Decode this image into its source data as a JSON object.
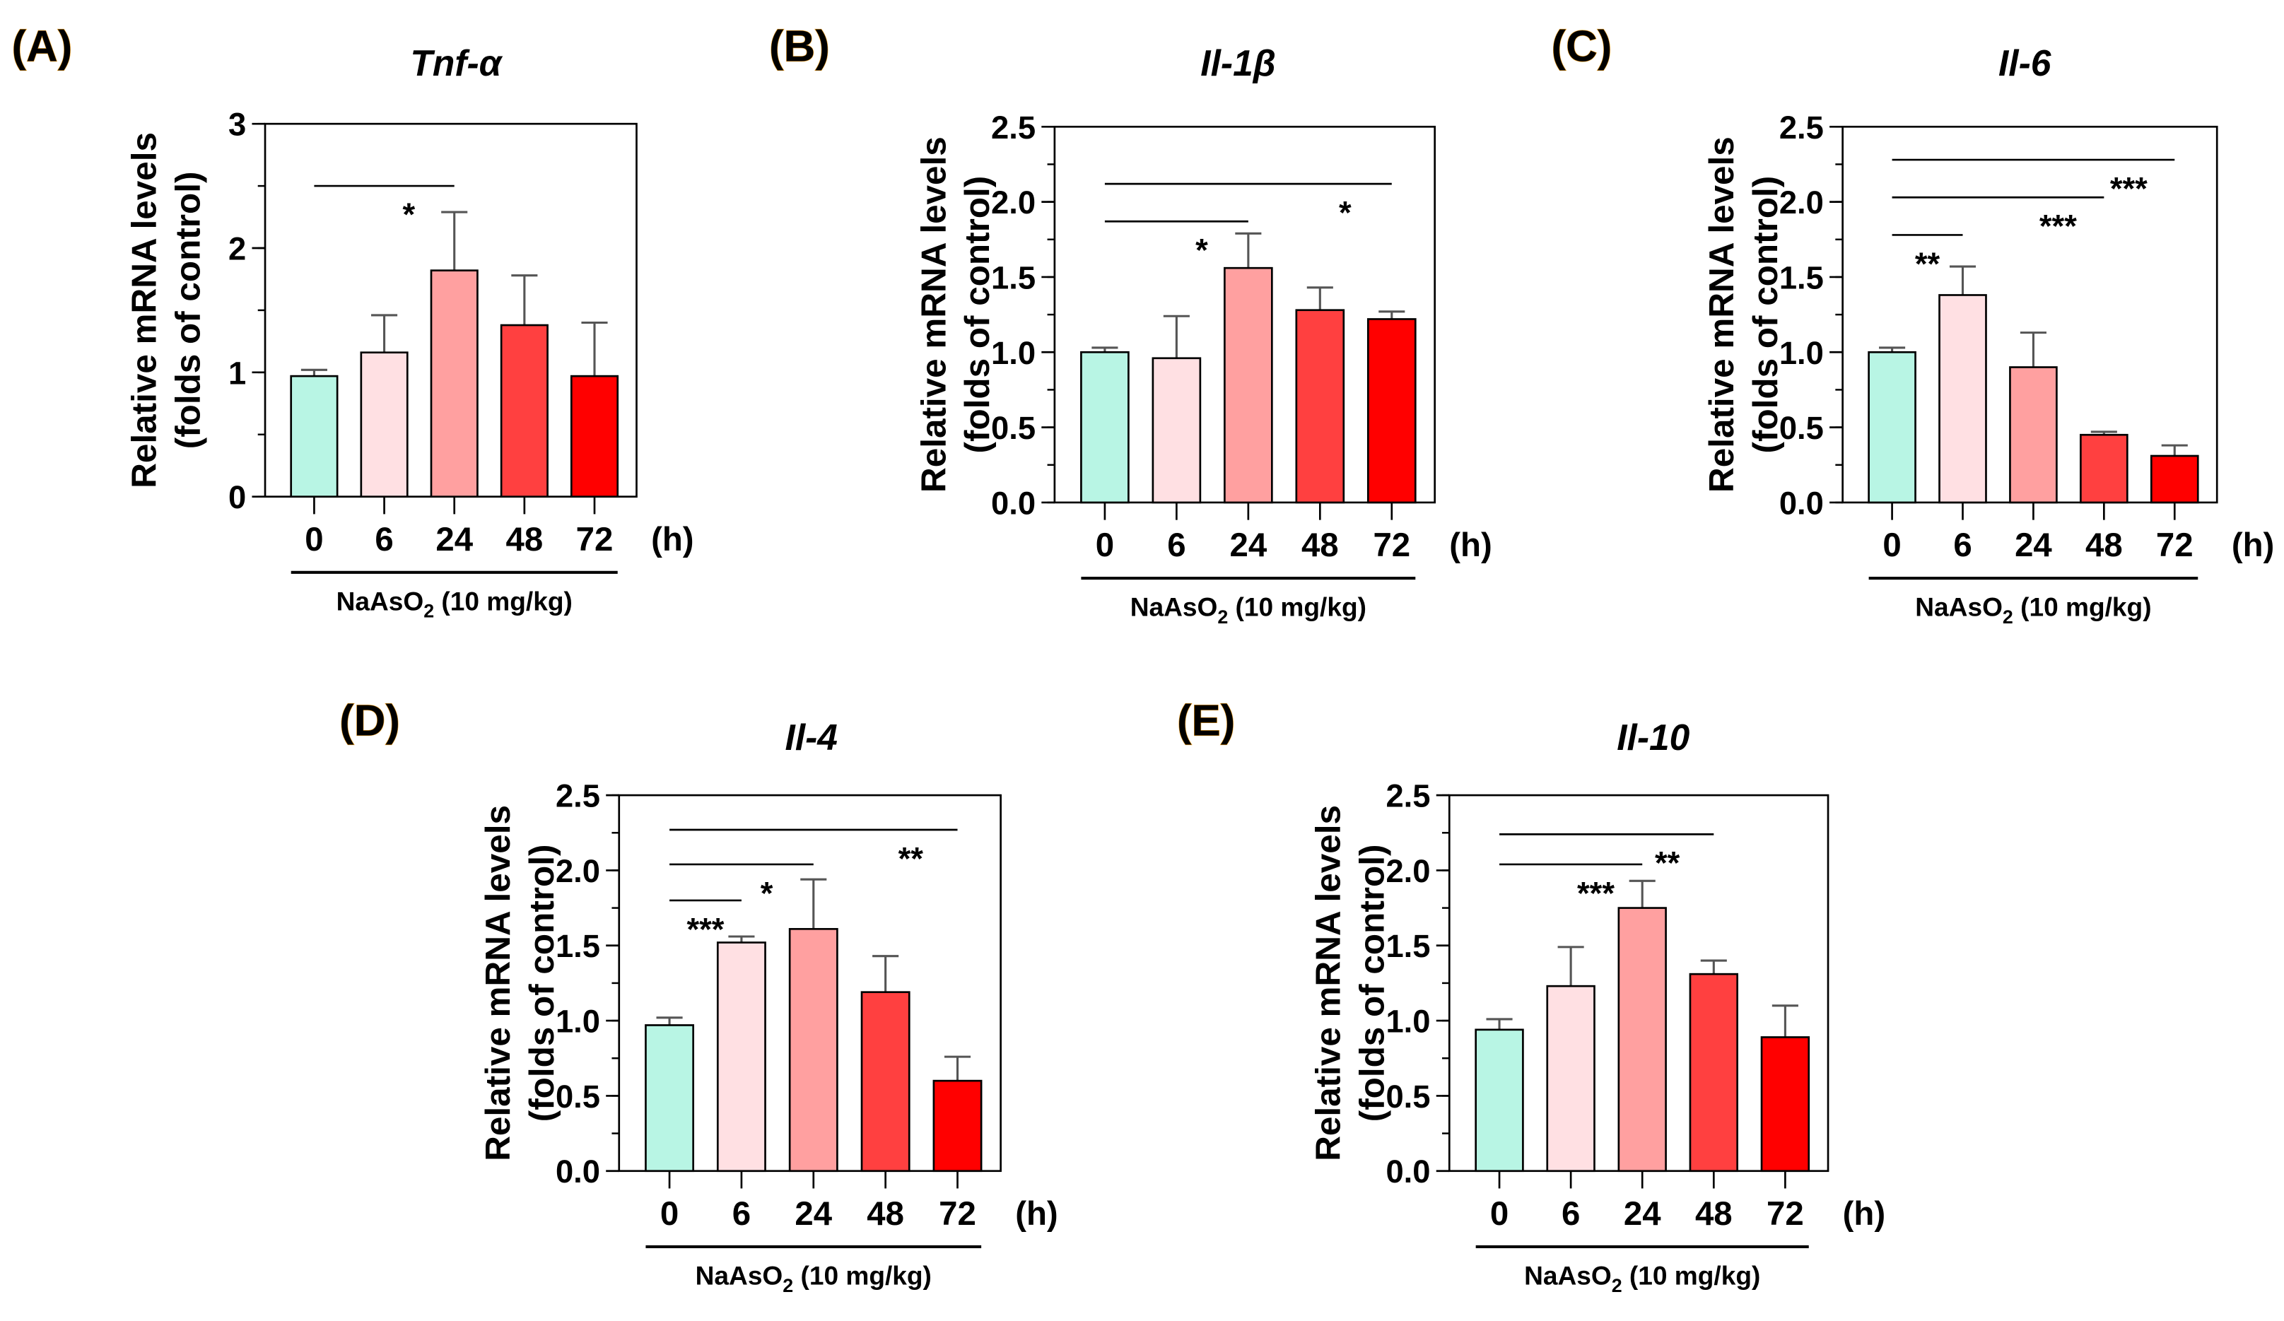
{
  "chart_data": [
    {
      "type": "bar",
      "panel_label": "(A)",
      "title": "Tnf-α",
      "ylabel_line1": "Relative mRNA levels",
      "ylabel_line2": "(folds of control)",
      "categories": [
        "0",
        "6",
        "24",
        "48",
        "72"
      ],
      "x_unit": "(h)",
      "treatment_label": "NaAsO",
      "treatment_sub": "2",
      "treatment_suffix": " (10 mg/kg)",
      "values": [
        0.97,
        1.16,
        1.82,
        1.38,
        0.97
      ],
      "errors": [
        0.05,
        0.3,
        0.47,
        0.4,
        0.43
      ],
      "ylim": [
        0,
        3
      ],
      "yticks": [
        "0",
        "1",
        "2",
        "3"
      ],
      "ytick_values": [
        0,
        1,
        2,
        3
      ],
      "minor_step": 0.5,
      "significance": [
        {
          "from": 0,
          "to": 2,
          "y": 2.5,
          "label": "*"
        }
      ]
    },
    {
      "type": "bar",
      "panel_label": "(B)",
      "title": "Il-1β",
      "ylabel_line1": "Relative mRNA levels",
      "ylabel_line2": "(folds of control)",
      "categories": [
        "0",
        "6",
        "24",
        "48",
        "72"
      ],
      "x_unit": "(h)",
      "treatment_label": "NaAsO",
      "treatment_sub": "2",
      "treatment_suffix": " (10 mg/kg)",
      "values": [
        1.0,
        0.96,
        1.56,
        1.28,
        1.22
      ],
      "errors": [
        0.03,
        0.28,
        0.23,
        0.15,
        0.05
      ],
      "ylim": [
        0,
        2.5
      ],
      "yticks": [
        "0.0",
        "0.5",
        "1.0",
        "1.5",
        "2.0",
        "2.5"
      ],
      "ytick_values": [
        0,
        0.5,
        1,
        1.5,
        2,
        2.5
      ],
      "minor_step": 0.25,
      "significance": [
        {
          "from": 0,
          "to": 2,
          "y": 1.87,
          "label": "*"
        },
        {
          "from": 0,
          "to": 4,
          "y": 2.12,
          "label": "*"
        }
      ]
    },
    {
      "type": "bar",
      "panel_label": "(C)",
      "title": "Il-6",
      "ylabel_line1": "Relative mRNA levels",
      "ylabel_line2": "(folds of control)",
      "categories": [
        "0",
        "6",
        "24",
        "48",
        "72"
      ],
      "x_unit": "(h)",
      "treatment_label": "NaAsO",
      "treatment_sub": "2",
      "treatment_suffix": " (10 mg/kg)",
      "values": [
        1.0,
        1.38,
        0.9,
        0.45,
        0.31
      ],
      "errors": [
        0.03,
        0.19,
        0.23,
        0.02,
        0.07
      ],
      "ylim": [
        0,
        2.5
      ],
      "yticks": [
        "0.0",
        "0.5",
        "1.0",
        "1.5",
        "2.0",
        "2.5"
      ],
      "ytick_values": [
        0,
        0.5,
        1,
        1.5,
        2,
        2.5
      ],
      "minor_step": 0.25,
      "significance": [
        {
          "from": 0,
          "to": 1,
          "y": 1.78,
          "label": "**"
        },
        {
          "from": 0,
          "to": 3,
          "y": 2.03,
          "label": "***"
        },
        {
          "from": 0,
          "to": 4,
          "y": 2.28,
          "label": "***"
        }
      ]
    },
    {
      "type": "bar",
      "panel_label": "(D)",
      "title": "Il-4",
      "ylabel_line1": "Relative mRNA levels",
      "ylabel_line2": "(folds of control)",
      "categories": [
        "0",
        "6",
        "24",
        "48",
        "72"
      ],
      "x_unit": "(h)",
      "treatment_label": "NaAsO",
      "treatment_sub": "2",
      "treatment_suffix": " (10 mg/kg)",
      "values": [
        0.97,
        1.52,
        1.61,
        1.19,
        0.6
      ],
      "errors": [
        0.05,
        0.04,
        0.33,
        0.24,
        0.16
      ],
      "ylim": [
        0,
        2.5
      ],
      "yticks": [
        "0.0",
        "0.5",
        "1.0",
        "1.5",
        "2.0",
        "2.5"
      ],
      "ytick_values": [
        0,
        0.5,
        1,
        1.5,
        2,
        2.5
      ],
      "minor_step": 0.25,
      "significance": [
        {
          "from": 0,
          "to": 1,
          "y": 1.8,
          "label": "***"
        },
        {
          "from": 0,
          "to": 2,
          "y": 2.04,
          "label": "*"
        },
        {
          "from": 0,
          "to": 4,
          "y": 2.27,
          "label": "**"
        }
      ]
    },
    {
      "type": "bar",
      "panel_label": "(E)",
      "title": "Il-10",
      "ylabel_line1": "Relative mRNA levels",
      "ylabel_line2": "(folds of control)",
      "categories": [
        "0",
        "6",
        "24",
        "48",
        "72"
      ],
      "x_unit": "(h)",
      "treatment_label": "NaAsO",
      "treatment_sub": "2",
      "treatment_suffix": " (10 mg/kg)",
      "values": [
        0.94,
        1.23,
        1.75,
        1.31,
        0.89
      ],
      "errors": [
        0.07,
        0.26,
        0.18,
        0.09,
        0.21
      ],
      "ylim": [
        0,
        2.5
      ],
      "yticks": [
        "0.0",
        "0.5",
        "1.0",
        "1.5",
        "2.0",
        "2.5"
      ],
      "ytick_values": [
        0,
        0.5,
        1,
        1.5,
        2,
        2.5
      ],
      "minor_step": 0.25,
      "significance": [
        {
          "from": 0,
          "to": 2,
          "y": 2.04,
          "label": "***"
        },
        {
          "from": 0,
          "to": 3,
          "y": 2.24,
          "label": "**"
        }
      ]
    }
  ],
  "colors": [
    "#b8f5e4",
    "#ffe0e3",
    "#ffa0a0",
    "#ff4040",
    "#ff0000"
  ],
  "panel_label_color": "#000000",
  "panel_label_outline": "#f0a020"
}
